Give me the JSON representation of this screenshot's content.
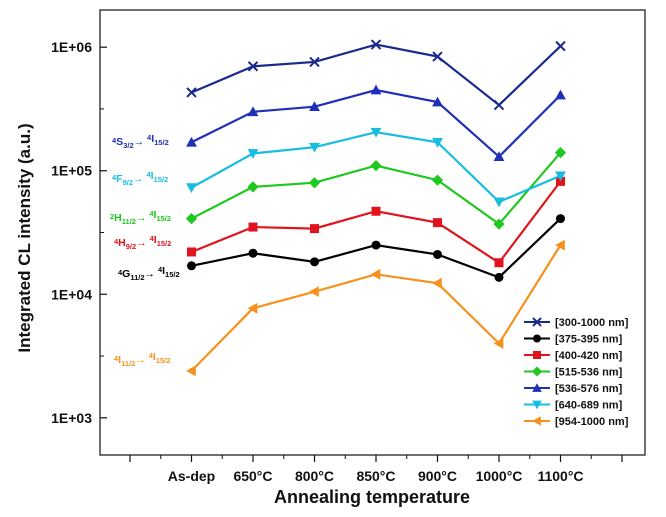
{
  "chart_data": {
    "type": "line",
    "xlabel": "Annealing temperature",
    "ylabel": "Integrated CL intensity (a.u.)",
    "yscale": "log",
    "ylim": [
      500,
      2000000
    ],
    "ytick_values": [
      1000,
      10000,
      100000,
      1000000
    ],
    "ytick_labels": [
      "1E+03",
      "1E+04",
      "1E+05",
      "1E+06"
    ],
    "categories": [
      "As-dep",
      "650°C",
      "800°C",
      "850°C",
      "900°C",
      "1000°C",
      "1100°C"
    ],
    "grid": false,
    "legend_position": "bottom-right",
    "series": [
      {
        "name": "[300-1000 nm]",
        "color": "#1a2a8c",
        "marker": "x",
        "values": [
          430000,
          700000,
          760000,
          1050000,
          840000,
          340000,
          1020000
        ]
      },
      {
        "name": "[375-395 nm]",
        "color": "#000000",
        "marker": "circle",
        "values": [
          17000,
          21500,
          18300,
          25000,
          21000,
          13700,
          41000
        ]
      },
      {
        "name": "[400-420 nm]",
        "color": "#e0141c",
        "marker": "square",
        "values": [
          22000,
          35000,
          34000,
          47000,
          38000,
          18000,
          82000
        ]
      },
      {
        "name": "[515-536 nm]",
        "color": "#1ec81e",
        "marker": "diamond",
        "values": [
          41000,
          74000,
          80000,
          110000,
          84000,
          37000,
          140000
        ]
      },
      {
        "name": "[536-576 nm]",
        "color": "#1f2fb8",
        "marker": "triangle-up",
        "values": [
          170000,
          300000,
          330000,
          450000,
          360000,
          130000,
          410000
        ]
      },
      {
        "name": "[640-689 nm]",
        "color": "#16bde0",
        "marker": "triangle-down",
        "values": [
          73000,
          138000,
          155000,
          205000,
          170000,
          56000,
          91000
        ]
      },
      {
        "name": "[954-1000 nm]",
        "color": "#f7911e",
        "marker": "triangle-left",
        "values": [
          2400,
          7700,
          10500,
          14500,
          12300,
          4000,
          25000
        ]
      }
    ],
    "annotations": [
      {
        "main": "4",
        "parts": [
          [
            "sup",
            "4"
          ],
          [
            "n",
            "S"
          ],
          [
            "sub",
            "3/2"
          ],
          [
            "n",
            "→ "
          ],
          [
            "sup",
            "4"
          ],
          [
            "n",
            "I"
          ],
          [
            "sub",
            "15/2"
          ]
        ],
        "text": "4S3/2→ 4I15/2",
        "color": "#1f2fb8"
      },
      {
        "text": "4F9/2→ 4I15/2",
        "color": "#16bde0"
      },
      {
        "text": "2H11/2→ 4I15/2",
        "color": "#1ec81e"
      },
      {
        "text": "4H9/2→ 4I15/2",
        "color": "#e0141c"
      },
      {
        "text": "4G11/2→ 4I15/2",
        "color": "#000000"
      },
      {
        "text": "4I11/2→ 4I15/2",
        "color": "#f7911e"
      }
    ]
  }
}
